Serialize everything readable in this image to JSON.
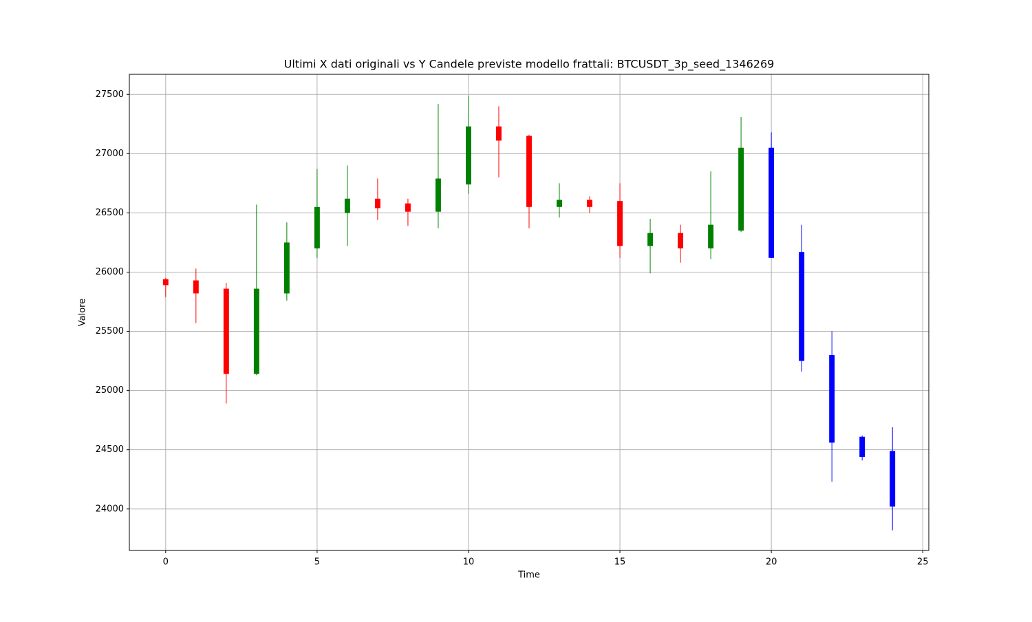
{
  "chart_data": {
    "type": "candlestick",
    "title": "Ultimi X dati originali vs Y Candele previste modello frattali: BTCUSDT_3p_seed_1346269",
    "x_label": "Time",
    "y_label": "Valore",
    "x": [
      0,
      1,
      2,
      3,
      4,
      5,
      6,
      7,
      8,
      9,
      10,
      11,
      12,
      13,
      14,
      15,
      16,
      17,
      18,
      19,
      20,
      21,
      22,
      23,
      24
    ],
    "open": [
      25940,
      25930,
      25860,
      25140,
      25820,
      26200,
      26500,
      26620,
      26580,
      26510,
      26740,
      27230,
      27150,
      26550,
      26610,
      26600,
      26220,
      26330,
      26200,
      26350,
      27050,
      26170,
      25300,
      24610,
      24490
    ],
    "high": [
      25950,
      26030,
      25910,
      26570,
      26420,
      26870,
      26900,
      26790,
      26620,
      27420,
      27490,
      27400,
      27160,
      26750,
      26640,
      26750,
      26450,
      26400,
      26850,
      27310,
      27180,
      26400,
      25500,
      24620,
      24690
    ],
    "low": [
      25790,
      25570,
      24890,
      25130,
      25760,
      26120,
      26220,
      26440,
      26390,
      26370,
      26660,
      26800,
      26370,
      26460,
      26500,
      26120,
      25990,
      26080,
      26110,
      26340,
      26120,
      25160,
      24230,
      24410,
      23820
    ],
    "close": [
      25890,
      25820,
      25140,
      25860,
      26250,
      26550,
      26620,
      26540,
      26510,
      26790,
      27230,
      27110,
      26550,
      26610,
      26550,
      26220,
      26330,
      26200,
      26400,
      27050,
      26120,
      25250,
      24560,
      24440,
      24020
    ],
    "colors": [
      "red",
      "red",
      "red",
      "green",
      "green",
      "green",
      "green",
      "red",
      "red",
      "green",
      "green",
      "red",
      "red",
      "green",
      "red",
      "red",
      "green",
      "red",
      "green",
      "green",
      "blue",
      "blue",
      "blue",
      "blue",
      "blue"
    ],
    "xlim": [
      -1.2,
      25.2
    ],
    "ylim": [
      23650,
      27670
    ],
    "xticks": [
      0,
      5,
      10,
      15,
      20,
      25
    ],
    "yticks": [
      24000,
      24500,
      25000,
      25500,
      26000,
      26500,
      27000,
      27500
    ],
    "grid": true
  }
}
